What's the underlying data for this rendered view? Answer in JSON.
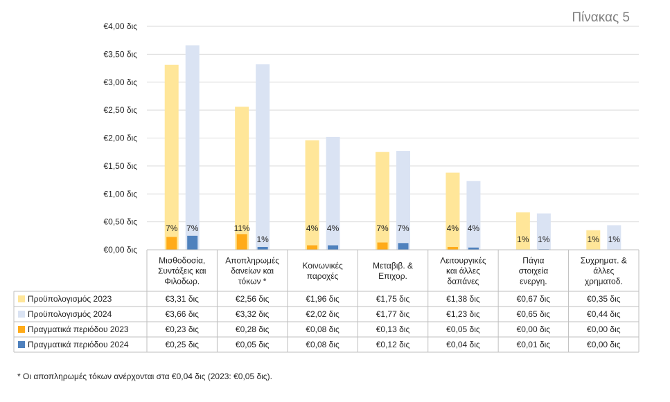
{
  "page_label": "Πίνακας 5",
  "footnote": "* Οι αποπληρωμές τόκων ανέρχονται στα €0,04 δις (2023: €0,05 δις).",
  "chart_data": {
    "type": "bar",
    "ylim": [
      0,
      4.0
    ],
    "y_ticks": [
      {
        "value": 0.0,
        "label": "€0,00 δις"
      },
      {
        "value": 0.5,
        "label": "€0,50 δις"
      },
      {
        "value": 1.0,
        "label": "€1,00 δις"
      },
      {
        "value": 1.5,
        "label": "€1,50 δις"
      },
      {
        "value": 2.0,
        "label": "€2,00 δις"
      },
      {
        "value": 2.5,
        "label": "€2,50 δις"
      },
      {
        "value": 3.0,
        "label": "€3,00 δις"
      },
      {
        "value": 3.5,
        "label": "€3,50 δις"
      },
      {
        "value": 4.0,
        "label": "€4,00 δις"
      }
    ],
    "grid": true,
    "legend": "data-table",
    "categories": [
      [
        "Μισθοδοσία,",
        "Συντάξεις και",
        "Φιλοδωρ."
      ],
      [
        "Αποπληρωμές",
        "δανείων και",
        "τόκων *"
      ],
      [
        "Κοινωνικές",
        "παροχές"
      ],
      [
        "Μεταβιβ. &",
        "Επιχορ."
      ],
      [
        "Λειτουργικές",
        "και άλλες",
        "δαπάνες"
      ],
      [
        "Πάγια",
        "στοιχεία",
        "ενεργη."
      ],
      [
        "Συχρηματ. &",
        "άλλες",
        "χρηματοδ."
      ]
    ],
    "series": [
      {
        "name": "Προϋπολογισμός 2023",
        "color": "#ffe699",
        "values": [
          3.31,
          2.56,
          1.96,
          1.75,
          1.38,
          0.67,
          0.35
        ],
        "labels": [
          "€3,31 δις",
          "€2,56 δις",
          "€1,96 δις",
          "€1,75 δις",
          "€1,38 δις",
          "€0,67 δις",
          "€0,35 δις"
        ]
      },
      {
        "name": "Προϋπολογισμός 2024",
        "color": "#dae3f3",
        "values": [
          3.66,
          3.32,
          2.02,
          1.77,
          1.23,
          0.65,
          0.44
        ],
        "labels": [
          "€3,66 δις",
          "€3,32 δις",
          "€2,02 δις",
          "€1,77 δις",
          "€1,23 δις",
          "€0,65 δις",
          "€0,44 δις"
        ]
      },
      {
        "name": "Πραγματικά περιόδου 2023",
        "color": "#ffab19",
        "values": [
          0.23,
          0.28,
          0.08,
          0.13,
          0.05,
          0.0,
          0.0
        ],
        "labels": [
          "€0,23 δις",
          "€0,28 δις",
          "€0,08 δις",
          "€0,13 δις",
          "€0,05 δις",
          "€0,00 δις",
          "€0,00 δις"
        ],
        "pct": [
          "7%",
          "11%",
          "4%",
          "7%",
          "4%",
          "1%",
          "1%"
        ]
      },
      {
        "name": "Πραγματικά περιόδου 2024",
        "color": "#4f81bd",
        "values": [
          0.25,
          0.05,
          0.08,
          0.12,
          0.04,
          0.01,
          0.0
        ],
        "labels": [
          "€0,25 δις",
          "€0,05 δις",
          "€0,08 δις",
          "€0,12 δις",
          "€0,04 δις",
          "€0,01 δις",
          "€0,00 δις"
        ],
        "pct": [
          "7%",
          "1%",
          "4%",
          "7%",
          "4%",
          "1%",
          "1%"
        ]
      }
    ]
  }
}
